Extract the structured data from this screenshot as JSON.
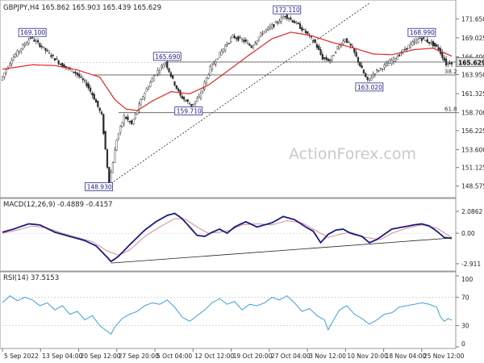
{
  "colors": {
    "candle": "#2a2a2a",
    "ma": "#e32626",
    "macd": "#1a1a80",
    "signal": "#d28f8f",
    "rsi": "#3f9fd8",
    "trendline": "#222222",
    "level_line": "#555555",
    "callout_border": "#2a2a90",
    "callout_text": "#1a1a80",
    "watermark": "#c9c9c9",
    "price_tag_bg": "#e6e6e6"
  },
  "chart_data": [
    {
      "type": "line",
      "name": "price-panel",
      "header": "GBPJPY,H4  165.862 165.903 165.439 165.629",
      "watermark": "ActionForex.com",
      "ylim": [
        147.2,
        173.8
      ],
      "y_ticks": [
        "171.650",
        "169.025",
        "166.400",
        "163.950",
        "161.325",
        "158.700",
        "156.225",
        "153.600",
        "151.125",
        "148.575"
      ],
      "last_price": "165.629",
      "x_labels": [
        "5 Sep 2022",
        "13 Sep 04:00",
        "20 Sep 12:00",
        "27 Sep 20:00",
        "5 Oct 04:00",
        "12 Oct 12:00",
        "19 Oct 20:00",
        "27 Oct 04:00",
        "3 Nov 12:00",
        "10 Nov 20:00",
        "18 Nov 04:00",
        "25 Nov 12:00"
      ],
      "anchor_points": [
        [
          0,
          163.2
        ],
        [
          3,
          166.1
        ],
        [
          8,
          169.1
        ],
        [
          11,
          167.8
        ],
        [
          16,
          165.4
        ],
        [
          20,
          164.2
        ],
        [
          23,
          162.6
        ],
        [
          25,
          160.7
        ],
        [
          27,
          158.3
        ],
        [
          29,
          148.93
        ],
        [
          31,
          155.0
        ],
        [
          33,
          158.2
        ],
        [
          35,
          157.1
        ],
        [
          38,
          161.0
        ],
        [
          41,
          163.8
        ],
        [
          44,
          165.69
        ],
        [
          46,
          163.2
        ],
        [
          48,
          161.0
        ],
        [
          51,
          159.71
        ],
        [
          53,
          160.8
        ],
        [
          56,
          164.8
        ],
        [
          59,
          167.2
        ],
        [
          62,
          169.2
        ],
        [
          65,
          168.6
        ],
        [
          67,
          167.8
        ],
        [
          70,
          169.8
        ],
        [
          73,
          170.8
        ],
        [
          76,
          172.11
        ],
        [
          79,
          171.0
        ],
        [
          82,
          169.5
        ],
        [
          84,
          168.3
        ],
        [
          86,
          166.2
        ],
        [
          88,
          165.9
        ],
        [
          90,
          167.7
        ],
        [
          92,
          168.9
        ],
        [
          94,
          167.5
        ],
        [
          96,
          165.2
        ],
        [
          98,
          163.02
        ],
        [
          100,
          164.3
        ],
        [
          103,
          165.3
        ],
        [
          106,
          166.5
        ],
        [
          109,
          167.9
        ],
        [
          112,
          168.99
        ],
        [
          115,
          168.3
        ],
        [
          117,
          167.5
        ],
        [
          119,
          165.4
        ],
        [
          120,
          165.63
        ]
      ],
      "moving_average": [
        [
          0,
          164.7
        ],
        [
          8,
          165.3
        ],
        [
          14,
          165.2
        ],
        [
          20,
          164.6
        ],
        [
          26,
          163.6
        ],
        [
          30,
          160.5
        ],
        [
          33,
          159.2
        ],
        [
          36,
          159.0
        ],
        [
          40,
          160.3
        ],
        [
          45,
          161.6
        ],
        [
          50,
          161.3
        ],
        [
          55,
          162.5
        ],
        [
          60,
          164.4
        ],
        [
          66,
          166.7
        ],
        [
          72,
          168.9
        ],
        [
          77,
          169.8
        ],
        [
          82,
          169.4
        ],
        [
          88,
          168.4
        ],
        [
          94,
          167.6
        ],
        [
          99,
          166.8
        ],
        [
          104,
          166.7
        ],
        [
          110,
          167.4
        ],
        [
          115,
          167.6
        ],
        [
          120,
          166.5
        ]
      ],
      "callouts": [
        {
          "label": "169.100",
          "x": 8,
          "y": 169.1
        },
        {
          "label": "165.690",
          "x": 44,
          "y": 165.69
        },
        {
          "label": "159.710",
          "x": 51,
          "y": 159.71
        },
        {
          "label": "148.930",
          "x": 29,
          "y": 148.93
        },
        {
          "label": "172.110",
          "x": 76,
          "y": 172.11
        },
        {
          "label": "168.990",
          "x": 112,
          "y": 168.99
        },
        {
          "label": "163.020",
          "x": 98,
          "y": 163.02
        }
      ],
      "fib_levels": [
        {
          "label": "38.2",
          "value": 163.9
        },
        {
          "label": "61.8",
          "value": 158.7
        }
      ],
      "trendline": [
        [
          29,
          148.93
        ],
        [
          98,
          173.8
        ]
      ]
    },
    {
      "type": "line",
      "name": "macd-panel",
      "header": "MACD(12,26,9) -0.4889 -0.4157",
      "ylim": [
        -3.3,
        2.4
      ],
      "y_ticks": [
        "2.0862",
        "0.00",
        "-2.911"
      ],
      "macd": [
        [
          0,
          0.1
        ],
        [
          3,
          0.4
        ],
        [
          7,
          0.9
        ],
        [
          10,
          0.8
        ],
        [
          14,
          0.1
        ],
        [
          18,
          -0.3
        ],
        [
          22,
          -0.7
        ],
        [
          25,
          -1.2
        ],
        [
          28,
          -2.3
        ],
        [
          29,
          -2.7
        ],
        [
          31,
          -2.2
        ],
        [
          34,
          -1.1
        ],
        [
          38,
          0.3
        ],
        [
          41,
          1.1
        ],
        [
          44,
          1.7
        ],
        [
          46,
          1.9
        ],
        [
          48,
          1.4
        ],
        [
          50,
          0.6
        ],
        [
          52,
          -0.2
        ],
        [
          54,
          -0.3
        ],
        [
          56,
          0.1
        ],
        [
          58,
          0.4
        ],
        [
          60,
          0.0
        ],
        [
          62,
          0.6
        ],
        [
          65,
          1.1
        ],
        [
          68,
          0.6
        ],
        [
          70,
          0.8
        ],
        [
          72,
          1.0
        ],
        [
          75,
          1.6
        ],
        [
          78,
          1.3
        ],
        [
          81,
          0.6
        ],
        [
          83,
          0.2
        ],
        [
          85,
          -0.9
        ],
        [
          87,
          -0.1
        ],
        [
          89,
          0.3
        ],
        [
          91,
          0.4
        ],
        [
          93,
          0.0
        ],
        [
          96,
          -0.3
        ],
        [
          98,
          -0.9
        ],
        [
          100,
          -0.6
        ],
        [
          102,
          -0.1
        ],
        [
          104,
          0.4
        ],
        [
          107,
          0.6
        ],
        [
          110,
          0.8
        ],
        [
          112,
          0.9
        ],
        [
          114,
          0.7
        ],
        [
          116,
          0.2
        ],
        [
          118,
          -0.4
        ],
        [
          120,
          -0.49
        ]
      ],
      "signal": [
        [
          0,
          0.0
        ],
        [
          4,
          0.3
        ],
        [
          8,
          0.7
        ],
        [
          12,
          0.5
        ],
        [
          16,
          0.0
        ],
        [
          20,
          -0.4
        ],
        [
          24,
          -0.8
        ],
        [
          28,
          -1.7
        ],
        [
          31,
          -2.1
        ],
        [
          34,
          -1.6
        ],
        [
          38,
          -0.3
        ],
        [
          42,
          0.6
        ],
        [
          46,
          1.4
        ],
        [
          49,
          1.3
        ],
        [
          52,
          0.6
        ],
        [
          55,
          0.0
        ],
        [
          58,
          0.1
        ],
        [
          61,
          0.3
        ],
        [
          64,
          0.8
        ],
        [
          68,
          0.9
        ],
        [
          72,
          0.8
        ],
        [
          76,
          1.2
        ],
        [
          80,
          1.0
        ],
        [
          84,
          0.2
        ],
        [
          87,
          -0.4
        ],
        [
          90,
          -0.1
        ],
        [
          93,
          0.1
        ],
        [
          97,
          -0.4
        ],
        [
          101,
          -0.6
        ],
        [
          104,
          0.0
        ],
        [
          108,
          0.5
        ],
        [
          112,
          0.8
        ],
        [
          116,
          0.5
        ],
        [
          120,
          -0.42
        ]
      ],
      "trendline": [
        [
          29,
          -2.85
        ],
        [
          120,
          -0.45
        ]
      ]
    },
    {
      "type": "line",
      "name": "rsi-panel",
      "header": "RSI(14) 37.5153",
      "ylim": [
        0,
        100
      ],
      "y_ticks": [
        "100",
        "70",
        "30",
        "0"
      ],
      "levels": [
        70,
        30
      ],
      "rsi": [
        [
          0,
          62
        ],
        [
          2,
          72
        ],
        [
          4,
          65
        ],
        [
          6,
          70
        ],
        [
          8,
          66
        ],
        [
          10,
          58
        ],
        [
          12,
          62
        ],
        [
          14,
          52
        ],
        [
          16,
          58
        ],
        [
          18,
          46
        ],
        [
          20,
          50
        ],
        [
          22,
          38
        ],
        [
          24,
          44
        ],
        [
          26,
          30
        ],
        [
          28,
          22
        ],
        [
          29,
          18
        ],
        [
          30,
          28
        ],
        [
          32,
          40
        ],
        [
          34,
          46
        ],
        [
          36,
          50
        ],
        [
          38,
          58
        ],
        [
          40,
          62
        ],
        [
          42,
          60
        ],
        [
          44,
          66
        ],
        [
          46,
          56
        ],
        [
          48,
          42
        ],
        [
          50,
          36
        ],
        [
          52,
          44
        ],
        [
          54,
          52
        ],
        [
          56,
          62
        ],
        [
          58,
          68
        ],
        [
          60,
          60
        ],
        [
          62,
          64
        ],
        [
          64,
          52
        ],
        [
          66,
          60
        ],
        [
          68,
          58
        ],
        [
          70,
          62
        ],
        [
          72,
          70
        ],
        [
          74,
          66
        ],
        [
          76,
          72
        ],
        [
          78,
          62
        ],
        [
          80,
          50
        ],
        [
          82,
          54
        ],
        [
          84,
          44
        ],
        [
          86,
          38
        ],
        [
          87,
          24
        ],
        [
          88,
          34
        ],
        [
          90,
          52
        ],
        [
          92,
          58
        ],
        [
          94,
          46
        ],
        [
          96,
          40
        ],
        [
          98,
          32
        ],
        [
          100,
          38
        ],
        [
          102,
          46
        ],
        [
          104,
          48
        ],
        [
          106,
          56
        ],
        [
          108,
          58
        ],
        [
          110,
          60
        ],
        [
          112,
          62
        ],
        [
          114,
          60
        ],
        [
          116,
          56
        ],
        [
          117,
          42
        ],
        [
          118,
          36
        ],
        [
          119,
          40
        ],
        [
          120,
          37.5
        ]
      ]
    }
  ]
}
